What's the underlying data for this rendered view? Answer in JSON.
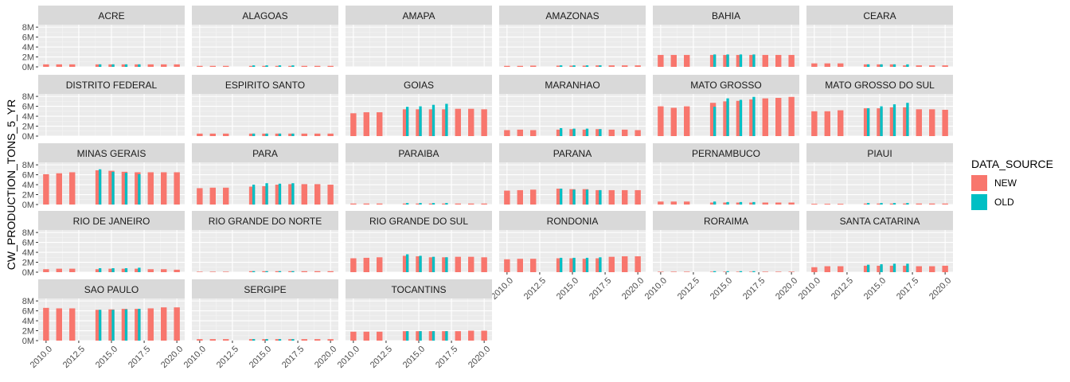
{
  "chart_data": {
    "type": "bar",
    "ylabel": "CW_PRODUCTION_TONS_5_YR",
    "xlabel": "",
    "facet_ncol": 6,
    "y_ticks": [
      0,
      2000000,
      4000000,
      6000000,
      8000000
    ],
    "y_tick_labels": [
      "0M",
      "2M",
      "4M",
      "6M",
      "8M"
    ],
    "ylim": [
      0,
      8500000
    ],
    "x_ticks": [
      2010,
      2012.5,
      2015,
      2017.5,
      2020
    ],
    "x_tick_labels": [
      "2010.0",
      "2012.5",
      "2015.0",
      "2017.5",
      "2020.0"
    ],
    "xlim": [
      2009.4,
      2020.6
    ],
    "legend": {
      "title": "DATA_SOURCE",
      "position": "right",
      "items": [
        {
          "label": "NEW",
          "color": "#F8766D"
        },
        {
          "label": "OLD",
          "color": "#00BFC4"
        }
      ]
    },
    "colors": {
      "NEW": "#F8766D",
      "OLD": "#00BFC4"
    },
    "years_new": [
      2010,
      2011,
      2012,
      2013,
      2014,
      2015,
      2016,
      2017,
      2018,
      2019,
      2020
    ],
    "years_old": [
      2014,
      2015,
      2016,
      2017
    ],
    "panels": [
      {
        "title": "ACRE",
        "new": [
          500000,
          500000,
          500000,
          null,
          500000,
          500000,
          500000,
          500000,
          500000,
          500000,
          500000
        ],
        "old": [
          500000,
          500000,
          500000,
          500000
        ]
      },
      {
        "title": "ALAGOAS",
        "new": [
          200000,
          200000,
          200000,
          null,
          200000,
          200000,
          200000,
          200000,
          200000,
          200000,
          200000
        ],
        "old": [
          300000,
          300000,
          300000,
          300000
        ]
      },
      {
        "title": "AMAPA",
        "new": [],
        "old": []
      },
      {
        "title": "AMAZONAS",
        "new": [
          200000,
          200000,
          250000,
          null,
          250000,
          250000,
          250000,
          300000,
          300000,
          300000,
          300000
        ],
        "old": [
          300000,
          300000,
          300000,
          300000
        ]
      },
      {
        "title": "BAHIA",
        "new": [
          2400000,
          2400000,
          2400000,
          null,
          2400000,
          2400000,
          2400000,
          2400000,
          2400000,
          2400000,
          2400000
        ],
        "old": [
          2500000,
          2500000,
          2500000,
          2500000
        ]
      },
      {
        "title": "CEARA",
        "new": [
          700000,
          700000,
          700000,
          null,
          500000,
          500000,
          500000,
          300000,
          300000,
          300000,
          300000
        ],
        "old": [
          500000,
          500000,
          500000,
          500000
        ]
      },
      {
        "title": "DISTRITO FEDERAL",
        "new": [],
        "old": []
      },
      {
        "title": "ESPIRITO SANTO",
        "new": [
          500000,
          500000,
          500000,
          null,
          500000,
          500000,
          500000,
          500000,
          500000,
          500000,
          500000
        ],
        "old": [
          500000,
          500000,
          500000,
          500000
        ]
      },
      {
        "title": "GOIAS",
        "new": [
          4600000,
          4800000,
          4800000,
          null,
          5400000,
          5400000,
          5400000,
          5400000,
          5500000,
          5500000,
          5400000
        ],
        "old": [
          5900000,
          6000000,
          6300000,
          6500000
        ]
      },
      {
        "title": "MARANHAO",
        "new": [
          1200000,
          1300000,
          1200000,
          null,
          1300000,
          1400000,
          1300000,
          1400000,
          1300000,
          1300000,
          1200000
        ],
        "old": [
          1600000,
          1500000,
          1500000,
          1400000
        ]
      },
      {
        "title": "MATO GROSSO",
        "new": [
          6000000,
          5700000,
          6000000,
          null,
          6700000,
          7000000,
          7100000,
          7400000,
          7600000,
          7700000,
          7900000
        ],
        "old": [
          5900000,
          7600000,
          7300000,
          7900000
        ]
      },
      {
        "title": "MATO GROSSO DO SUL",
        "new": [
          5000000,
          5000000,
          5200000,
          null,
          5600000,
          5600000,
          5800000,
          5800000,
          5400000,
          5400000,
          5300000
        ],
        "old": [
          5600000,
          6000000,
          6400000,
          6700000
        ]
      },
      {
        "title": "MINAS GERAIS",
        "new": [
          6100000,
          6300000,
          6500000,
          null,
          6900000,
          6800000,
          6600000,
          6500000,
          6500000,
          6500000,
          6500000
        ],
        "old": [
          7100000,
          6600000,
          6400000,
          6100000
        ]
      },
      {
        "title": "PARA",
        "new": [
          3300000,
          3400000,
          3400000,
          null,
          3600000,
          3700000,
          4000000,
          4100000,
          4100000,
          4100000,
          4000000
        ],
        "old": [
          4000000,
          4300000,
          4200000,
          4300000
        ]
      },
      {
        "title": "PARAIBA",
        "new": [
          200000,
          200000,
          200000,
          null,
          200000,
          200000,
          200000,
          200000,
          200000,
          200000,
          200000
        ],
        "old": [
          300000,
          300000,
          300000,
          300000
        ]
      },
      {
        "title": "PARANA",
        "new": [
          2800000,
          2900000,
          3000000,
          null,
          3200000,
          3100000,
          3100000,
          2900000,
          2900000,
          2900000,
          2900000
        ],
        "old": [
          3200000,
          3000000,
          3000000,
          2900000
        ]
      },
      {
        "title": "PERNAMBUCO",
        "new": [
          600000,
          600000,
          600000,
          null,
          400000,
          400000,
          400000,
          400000,
          400000,
          400000,
          400000
        ],
        "old": [
          600000,
          500000,
          500000,
          500000
        ]
      },
      {
        "title": "PIAUI",
        "new": [
          150000,
          150000,
          150000,
          null,
          200000,
          200000,
          200000,
          200000,
          200000,
          200000,
          200000
        ],
        "old": [
          300000,
          300000,
          300000,
          300000
        ]
      },
      {
        "title": "RIO DE JANEIRO",
        "new": [
          600000,
          700000,
          700000,
          null,
          600000,
          700000,
          700000,
          700000,
          600000,
          600000,
          500000
        ],
        "old": [
          800000,
          800000,
          800000,
          900000
        ]
      },
      {
        "title": "RIO GRANDE DO NORTE",
        "new": [
          100000,
          100000,
          100000,
          null,
          200000,
          200000,
          200000,
          200000,
          200000,
          200000,
          200000
        ],
        "old": [
          200000,
          200000,
          200000,
          200000
        ]
      },
      {
        "title": "RIO GRANDE DO SUL",
        "new": [
          2800000,
          2900000,
          3000000,
          null,
          3300000,
          3200000,
          3000000,
          3000000,
          3100000,
          3100000,
          3000000
        ],
        "old": [
          3600000,
          3300000,
          3100000,
          3000000
        ]
      },
      {
        "title": "RONDONIA",
        "new": [
          2600000,
          2700000,
          2700000,
          null,
          2800000,
          2800000,
          2700000,
          2800000,
          3100000,
          3200000,
          3200000
        ],
        "old": [
          2900000,
          2900000,
          2900000,
          3000000
        ]
      },
      {
        "title": "RORAIMA",
        "new": [
          100000,
          100000,
          100000,
          null,
          100000,
          100000,
          100000,
          100000,
          100000,
          100000,
          100000
        ],
        "old": [
          200000,
          200000,
          200000,
          200000
        ]
      },
      {
        "title": "SANTA CATARINA",
        "new": [
          1000000,
          1200000,
          1200000,
          null,
          1300000,
          1300000,
          1300000,
          1300000,
          1200000,
          1200000,
          1300000
        ],
        "old": [
          1500000,
          1600000,
          1700000,
          1700000
        ]
      },
      {
        "title": "SAO PAULO",
        "new": [
          6600000,
          6500000,
          6500000,
          null,
          6200000,
          6300000,
          6400000,
          6400000,
          6500000,
          6700000,
          6700000
        ],
        "old": [
          6200000,
          6200000,
          6300000,
          6400000
        ]
      },
      {
        "title": "SERGIPE",
        "new": [
          300000,
          300000,
          300000,
          null,
          300000,
          300000,
          300000,
          300000,
          300000,
          300000,
          300000
        ],
        "old": [
          300000,
          300000,
          300000,
          300000
        ]
      },
      {
        "title": "TOCANTINS",
        "new": [
          1800000,
          1800000,
          1800000,
          null,
          1900000,
          1900000,
          1900000,
          1900000,
          1900000,
          2000000,
          2000000
        ],
        "old": [
          1900000,
          1900000,
          1900000,
          1900000
        ]
      }
    ]
  }
}
